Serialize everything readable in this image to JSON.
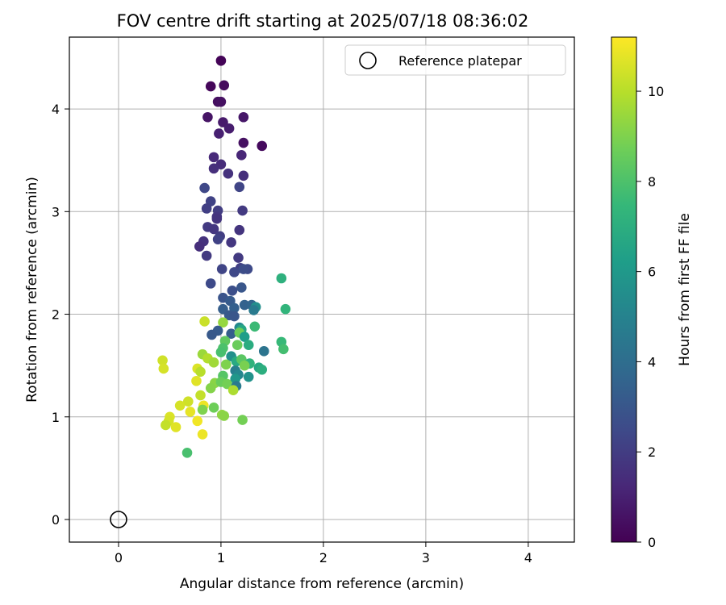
{
  "chart_data": {
    "type": "scatter",
    "title": "FOV centre drift starting at 2025/07/18 08:36:02",
    "xlabel": "Angular distance from reference (arcmin)",
    "ylabel": "Rotation from reference (arcmin)",
    "xlim": [
      -0.48,
      4.45
    ],
    "ylim": [
      -0.22,
      4.7
    ],
    "x_ticks": [
      0,
      1,
      2,
      3,
      4
    ],
    "y_ticks": [
      0,
      1,
      2,
      3,
      4
    ],
    "grid": true,
    "legend": {
      "position": "top-right",
      "entries": [
        "Reference platepar"
      ]
    },
    "reference_point": {
      "x": 0,
      "y": 0,
      "label": "Reference platepar",
      "marker": "open-circle"
    },
    "colorbar": {
      "label": "Hours from first FF file",
      "colormap": "viridis",
      "range": [
        0,
        11.2
      ],
      "ticks": [
        0,
        2,
        4,
        6,
        8,
        10
      ]
    },
    "points": [
      {
        "x": 1.0,
        "y": 4.47,
        "h": 0.1
      },
      {
        "x": 0.9,
        "y": 4.22,
        "h": 0.2
      },
      {
        "x": 1.03,
        "y": 4.23,
        "h": 0.3
      },
      {
        "x": 0.97,
        "y": 4.07,
        "h": 0.4
      },
      {
        "x": 1.0,
        "y": 4.07,
        "h": 0.5
      },
      {
        "x": 0.87,
        "y": 3.92,
        "h": 0.6
      },
      {
        "x": 1.22,
        "y": 3.92,
        "h": 0.7
      },
      {
        "x": 1.02,
        "y": 3.87,
        "h": 0.8
      },
      {
        "x": 1.08,
        "y": 3.81,
        "h": 0.9
      },
      {
        "x": 0.98,
        "y": 3.76,
        "h": 1.0
      },
      {
        "x": 1.22,
        "y": 3.67,
        "h": 0.5
      },
      {
        "x": 1.4,
        "y": 3.64,
        "h": 0.3
      },
      {
        "x": 1.2,
        "y": 3.55,
        "h": 1.2
      },
      {
        "x": 0.93,
        "y": 3.53,
        "h": 1.3
      },
      {
        "x": 1.0,
        "y": 3.46,
        "h": 1.4
      },
      {
        "x": 0.93,
        "y": 3.42,
        "h": 1.5
      },
      {
        "x": 1.07,
        "y": 3.37,
        "h": 1.6
      },
      {
        "x": 1.22,
        "y": 3.35,
        "h": 1.5
      },
      {
        "x": 1.18,
        "y": 3.24,
        "h": 2.3
      },
      {
        "x": 0.84,
        "y": 3.23,
        "h": 2.4
      },
      {
        "x": 0.9,
        "y": 3.1,
        "h": 2.2
      },
      {
        "x": 0.86,
        "y": 3.03,
        "h": 2.1
      },
      {
        "x": 0.97,
        "y": 3.01,
        "h": 2.0
      },
      {
        "x": 1.21,
        "y": 3.01,
        "h": 1.9
      },
      {
        "x": 0.96,
        "y": 2.95,
        "h": 1.8
      },
      {
        "x": 0.96,
        "y": 2.93,
        "h": 1.7
      },
      {
        "x": 0.87,
        "y": 2.85,
        "h": 1.9
      },
      {
        "x": 0.93,
        "y": 2.83,
        "h": 1.8
      },
      {
        "x": 1.18,
        "y": 2.82,
        "h": 1.7
      },
      {
        "x": 0.99,
        "y": 2.76,
        "h": 2.0
      },
      {
        "x": 0.97,
        "y": 2.73,
        "h": 2.2
      },
      {
        "x": 0.83,
        "y": 2.71,
        "h": 1.6
      },
      {
        "x": 1.1,
        "y": 2.7,
        "h": 1.8
      },
      {
        "x": 0.79,
        "y": 2.66,
        "h": 1.5
      },
      {
        "x": 0.86,
        "y": 2.57,
        "h": 1.9
      },
      {
        "x": 1.17,
        "y": 2.55,
        "h": 1.9
      },
      {
        "x": 1.19,
        "y": 2.45,
        "h": 2.1
      },
      {
        "x": 1.01,
        "y": 2.44,
        "h": 2.3
      },
      {
        "x": 1.26,
        "y": 2.44,
        "h": 2.5
      },
      {
        "x": 1.13,
        "y": 2.41,
        "h": 2.4
      },
      {
        "x": 1.22,
        "y": 2.44,
        "h": 2.6
      },
      {
        "x": 0.9,
        "y": 2.3,
        "h": 2.5
      },
      {
        "x": 1.2,
        "y": 2.26,
        "h": 3.0
      },
      {
        "x": 1.11,
        "y": 2.23,
        "h": 2.7
      },
      {
        "x": 1.02,
        "y": 2.16,
        "h": 2.9
      },
      {
        "x": 1.09,
        "y": 2.13,
        "h": 3.2
      },
      {
        "x": 1.23,
        "y": 2.09,
        "h": 3.5
      },
      {
        "x": 1.3,
        "y": 2.09,
        "h": 3.6
      },
      {
        "x": 1.34,
        "y": 2.07,
        "h": 5.5
      },
      {
        "x": 1.32,
        "y": 2.04,
        "h": 4.6
      },
      {
        "x": 1.13,
        "y": 2.06,
        "h": 3.4
      },
      {
        "x": 1.02,
        "y": 2.05,
        "h": 3.3
      },
      {
        "x": 1.08,
        "y": 1.99,
        "h": 3.1
      },
      {
        "x": 1.13,
        "y": 1.98,
        "h": 3.0
      },
      {
        "x": 1.59,
        "y": 2.35,
        "h": 7.1
      },
      {
        "x": 1.63,
        "y": 2.05,
        "h": 7.3
      },
      {
        "x": 0.84,
        "y": 1.93,
        "h": 10.3
      },
      {
        "x": 1.02,
        "y": 1.92,
        "h": 9.4
      },
      {
        "x": 1.33,
        "y": 1.88,
        "h": 7.6
      },
      {
        "x": 1.18,
        "y": 1.87,
        "h": 5.3
      },
      {
        "x": 1.2,
        "y": 1.85,
        "h": 6.6
      },
      {
        "x": 0.97,
        "y": 1.84,
        "h": 3.2
      },
      {
        "x": 0.91,
        "y": 1.8,
        "h": 3.1
      },
      {
        "x": 1.1,
        "y": 1.81,
        "h": 3.3
      },
      {
        "x": 1.18,
        "y": 1.82,
        "h": 8.7
      },
      {
        "x": 1.23,
        "y": 1.78,
        "h": 6.2
      },
      {
        "x": 1.27,
        "y": 1.7,
        "h": 6.9
      },
      {
        "x": 1.04,
        "y": 1.74,
        "h": 8.4
      },
      {
        "x": 1.16,
        "y": 1.7,
        "h": 8.6
      },
      {
        "x": 1.59,
        "y": 1.73,
        "h": 7.5
      },
      {
        "x": 1.61,
        "y": 1.66,
        "h": 7.8
      },
      {
        "x": 1.42,
        "y": 1.64,
        "h": 4.3
      },
      {
        "x": 1.02,
        "y": 1.67,
        "h": 8.0
      },
      {
        "x": 1.0,
        "y": 1.63,
        "h": 7.9
      },
      {
        "x": 1.1,
        "y": 1.59,
        "h": 5.6
      },
      {
        "x": 0.82,
        "y": 1.61,
        "h": 9.5
      },
      {
        "x": 0.87,
        "y": 1.57,
        "h": 9.9
      },
      {
        "x": 1.15,
        "y": 1.54,
        "h": 6.8
      },
      {
        "x": 1.2,
        "y": 1.56,
        "h": 8.3
      },
      {
        "x": 1.28,
        "y": 1.52,
        "h": 7.2
      },
      {
        "x": 0.43,
        "y": 1.55,
        "h": 10.4
      },
      {
        "x": 0.93,
        "y": 1.53,
        "h": 9.6
      },
      {
        "x": 1.05,
        "y": 1.51,
        "h": 9.0
      },
      {
        "x": 1.23,
        "y": 1.5,
        "h": 8.9
      },
      {
        "x": 1.37,
        "y": 1.48,
        "h": 6.7
      },
      {
        "x": 1.4,
        "y": 1.46,
        "h": 7.0
      },
      {
        "x": 0.44,
        "y": 1.47,
        "h": 10.5
      },
      {
        "x": 0.77,
        "y": 1.47,
        "h": 10.6
      },
      {
        "x": 0.8,
        "y": 1.44,
        "h": 10.0
      },
      {
        "x": 1.14,
        "y": 1.45,
        "h": 4.8
      },
      {
        "x": 1.17,
        "y": 1.41,
        "h": 5.2
      },
      {
        "x": 1.02,
        "y": 1.4,
        "h": 8.2
      },
      {
        "x": 1.14,
        "y": 1.37,
        "h": 5.9
      },
      {
        "x": 1.27,
        "y": 1.39,
        "h": 5.7
      },
      {
        "x": 0.76,
        "y": 1.35,
        "h": 10.7
      },
      {
        "x": 0.94,
        "y": 1.33,
        "h": 9.2
      },
      {
        "x": 1.0,
        "y": 1.34,
        "h": 8.6
      },
      {
        "x": 1.06,
        "y": 1.32,
        "h": 8.8
      },
      {
        "x": 1.15,
        "y": 1.3,
        "h": 4.6
      },
      {
        "x": 0.9,
        "y": 1.28,
        "h": 9.1
      },
      {
        "x": 1.12,
        "y": 1.26,
        "h": 9.8
      },
      {
        "x": 0.8,
        "y": 1.21,
        "h": 10.2
      },
      {
        "x": 0.68,
        "y": 1.15,
        "h": 10.4
      },
      {
        "x": 0.6,
        "y": 1.11,
        "h": 10.5
      },
      {
        "x": 0.83,
        "y": 1.11,
        "h": 10.9
      },
      {
        "x": 0.82,
        "y": 1.07,
        "h": 9.0
      },
      {
        "x": 0.93,
        "y": 1.09,
        "h": 8.7
      },
      {
        "x": 0.7,
        "y": 1.05,
        "h": 10.8
      },
      {
        "x": 1.01,
        "y": 1.02,
        "h": 9.3
      },
      {
        "x": 1.03,
        "y": 1.01,
        "h": 9.2
      },
      {
        "x": 0.5,
        "y": 1.0,
        "h": 10.6
      },
      {
        "x": 0.49,
        "y": 0.96,
        "h": 10.5
      },
      {
        "x": 0.77,
        "y": 0.96,
        "h": 11.0
      },
      {
        "x": 1.21,
        "y": 0.97,
        "h": 8.8
      },
      {
        "x": 0.46,
        "y": 0.92,
        "h": 10.2
      },
      {
        "x": 0.56,
        "y": 0.9,
        "h": 10.7
      },
      {
        "x": 0.82,
        "y": 0.83,
        "h": 10.9
      },
      {
        "x": 0.67,
        "y": 0.65,
        "h": 7.9
      }
    ]
  }
}
